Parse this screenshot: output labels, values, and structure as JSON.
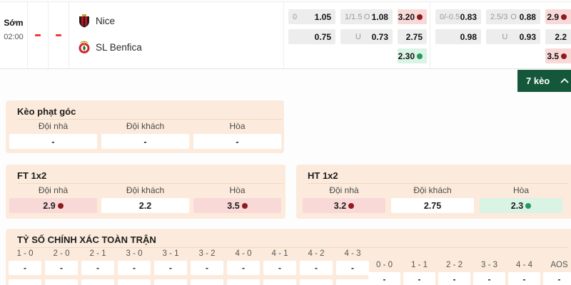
{
  "board": {
    "time_label": "Sớm",
    "time_value": "02:00",
    "score_home": "-",
    "score_away": "-",
    "home_team": "Nice",
    "away_team": "SL Benfica",
    "block1": {
      "hdp_label_1": "0",
      "hdp_odds_1": "1.05",
      "hdp_label_2": "",
      "hdp_odds_2": "0.75",
      "ou_label_1": "1/1.5",
      "ou_side_1": "O",
      "ou_odds_1": "1.08",
      "ou_label_2": "",
      "ou_side_2": "U",
      "ou_odds_2": "0.73",
      "x12_1": "3.20",
      "x12_2": "2.75",
      "x12_3": "2.30"
    },
    "block2": {
      "hdp_label_1": "0/-0.5",
      "hdp_odds_1": "0.83",
      "hdp_label_2": "",
      "hdp_odds_2": "0.98",
      "ou_label_1": "2.5/3",
      "ou_side_1": "O",
      "ou_odds_1": "0.88",
      "ou_label_2": "",
      "ou_side_2": "U",
      "ou_odds_2": "0.93",
      "x12_1": "2.9",
      "x12_2": "2.2",
      "x12_3": "3.5"
    }
  },
  "keo_bar": {
    "label": "7 kèo",
    "chevron": "chevron-up-icon"
  },
  "corner_section": {
    "title": "Kèo phạt góc",
    "headers": [
      "Đội nhà",
      "Đội khách",
      "Hòa"
    ],
    "values": [
      "-",
      "-",
      "-"
    ]
  },
  "ft_section": {
    "title": "FT 1x2",
    "headers": [
      "Đội nhà",
      "Đội khách",
      "Hòa"
    ],
    "values": [
      "2.9",
      "2.2",
      "3.5"
    ]
  },
  "ht_section": {
    "title": "HT 1x2",
    "headers": [
      "Đội nhà",
      "Đội khách",
      "Hòa"
    ],
    "values": [
      "3.2",
      "2.75",
      "2.3"
    ]
  },
  "score_section": {
    "title": "TỶ SỐ CHÍNH XÁC TOÀN TRẬN",
    "group1_labels": [
      "1 - 0",
      "2 - 0",
      "2 - 1",
      "3 - 0",
      "3 - 1",
      "3 - 2",
      "4 - 0",
      "4 - 1",
      "4 - 2",
      "4 - 3"
    ],
    "group1_values": [
      "-",
      "-",
      "-",
      "-",
      "-",
      "-",
      "-",
      "-",
      "-",
      "-"
    ],
    "group2_labels": [
      "0 - 0",
      "1 - 1",
      "2 - 2",
      "3 - 3",
      "4 - 4",
      "AOS"
    ],
    "group2_values": [
      "-",
      "-",
      "-",
      "-",
      "-",
      "-"
    ]
  },
  "colors": {
    "odds_up_bg": "#f9d9d7",
    "odds_down_bg": "#d9f3e5",
    "odds_neutral_bg": "#ededed",
    "panel_bg": "#fcebdc",
    "bar_green": "#14573a",
    "dot_red": "#8e1b1f",
    "dot_green": "#27985f",
    "live_dash_red": "#ee3b2f"
  }
}
